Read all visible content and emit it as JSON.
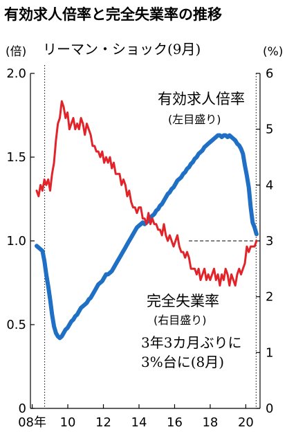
{
  "title": "有効求人倍率と完全失業率の推移",
  "chart_data": {
    "type": "line",
    "x_start": 2008.25,
    "x_end": 2020.6,
    "x_range": [
      2007.9,
      2020.8
    ],
    "x_ticks": [
      {
        "value": 2008,
        "label": "08年"
      },
      {
        "value": 2010,
        "label": "10"
      },
      {
        "value": 2012,
        "label": "12"
      },
      {
        "value": 2014,
        "label": "14"
      },
      {
        "value": 2016,
        "label": "16"
      },
      {
        "value": 2018,
        "label": "18"
      },
      {
        "value": 2020,
        "label": "20"
      }
    ],
    "y_left": {
      "unit": "(倍)",
      "range": [
        0,
        2.0
      ],
      "ticks": [
        {
          "value": 0,
          "label": "0"
        },
        {
          "value": 0.5,
          "label": "0.5"
        },
        {
          "value": 1.0,
          "label": "1.0"
        },
        {
          "value": 1.5,
          "label": "1.5"
        },
        {
          "value": 2.0,
          "label": "2.0"
        }
      ]
    },
    "y_right": {
      "unit": "(%)",
      "range": [
        0,
        6
      ],
      "ticks": [
        {
          "value": 0,
          "label": "0"
        },
        {
          "value": 1,
          "label": "1"
        },
        {
          "value": 2,
          "label": "2"
        },
        {
          "value": 3,
          "label": "3"
        },
        {
          "value": 4,
          "label": "4"
        },
        {
          "value": 5,
          "label": "5"
        },
        {
          "value": 6,
          "label": "6"
        }
      ]
    },
    "series": [
      {
        "name": "有効求人倍率",
        "sub": "(左目盛り)",
        "axis": "left",
        "color": "#1f6fc5",
        "values": [
          0.97,
          0.96,
          0.95,
          0.94,
          0.88,
          0.8,
          0.73,
          0.65,
          0.56,
          0.49,
          0.45,
          0.43,
          0.42,
          0.43,
          0.45,
          0.47,
          0.48,
          0.5,
          0.52,
          0.53,
          0.55,
          0.56,
          0.58,
          0.6,
          0.61,
          0.62,
          0.63,
          0.65,
          0.66,
          0.68,
          0.7,
          0.72,
          0.74,
          0.75,
          0.76,
          0.78,
          0.8,
          0.8,
          0.81,
          0.82,
          0.84,
          0.86,
          0.88,
          0.9,
          0.92,
          0.94,
          0.96,
          0.98,
          1.0,
          1.02,
          1.04,
          1.06,
          1.08,
          1.09,
          1.1,
          1.11,
          1.1,
          1.11,
          1.12,
          1.14,
          1.15,
          1.16,
          1.18,
          1.19,
          1.21,
          1.22,
          1.24,
          1.26,
          1.28,
          1.29,
          1.31,
          1.32,
          1.34,
          1.36,
          1.37,
          1.38,
          1.4,
          1.41,
          1.43,
          1.44,
          1.46,
          1.47,
          1.49,
          1.5,
          1.52,
          1.53,
          1.54,
          1.56,
          1.57,
          1.58,
          1.59,
          1.6,
          1.61,
          1.62,
          1.63,
          1.63,
          1.62,
          1.63,
          1.63,
          1.62,
          1.63,
          1.62,
          1.61,
          1.6,
          1.58,
          1.57,
          1.55,
          1.52,
          1.45,
          1.39,
          1.32,
          1.2,
          1.11,
          1.08,
          1.04
        ]
      },
      {
        "name": "完全失業率",
        "sub": "(右目盛り)",
        "axis": "right",
        "color": "#e0242a",
        "values": [
          3.9,
          3.8,
          4.0,
          3.9,
          4.1,
          4.0,
          4.1,
          3.9,
          4.2,
          4.4,
          4.8,
          5.1,
          5.2,
          5.5,
          5.4,
          5.2,
          5.3,
          5.0,
          5.1,
          5.2,
          5.0,
          5.1,
          5.0,
          5.2,
          5.1,
          4.9,
          5.1,
          5.0,
          4.9,
          4.7,
          4.7,
          4.6,
          4.6,
          4.5,
          4.6,
          4.4,
          4.5,
          4.4,
          4.5,
          4.3,
          4.4,
          4.2,
          4.2,
          4.2,
          4.0,
          4.1,
          4.0,
          3.8,
          3.9,
          3.7,
          3.6,
          3.6,
          3.5,
          3.6,
          3.6,
          3.4,
          3.4,
          3.3,
          3.5,
          3.3,
          3.4,
          3.3,
          3.3,
          3.2,
          3.2,
          3.1,
          3.3,
          3.1,
          3.0,
          3.1,
          3.0,
          2.9,
          3.0,
          3.1,
          2.9,
          2.8,
          2.8,
          2.7,
          2.8,
          2.7,
          2.5,
          2.5,
          2.5,
          2.4,
          2.5,
          2.3,
          2.4,
          2.5,
          2.3,
          2.4,
          2.3,
          2.4,
          2.5,
          2.3,
          2.4,
          2.2,
          2.4,
          2.3,
          2.5,
          2.4,
          2.2,
          2.4,
          2.3,
          2.2,
          2.4,
          2.5,
          2.4,
          2.5,
          2.6,
          2.9,
          2.8,
          2.9,
          2.9,
          2.9,
          3.0
        ]
      }
    ],
    "reference_line": {
      "axis": "left",
      "value": 1.0
    },
    "event": {
      "x": 2008.7,
      "label": "リーマン・ショック(9月)"
    },
    "end_marker_x": 2020.58,
    "annotation": [
      "3年3カ月ぶりに",
      "3%台に(8月)"
    ]
  }
}
